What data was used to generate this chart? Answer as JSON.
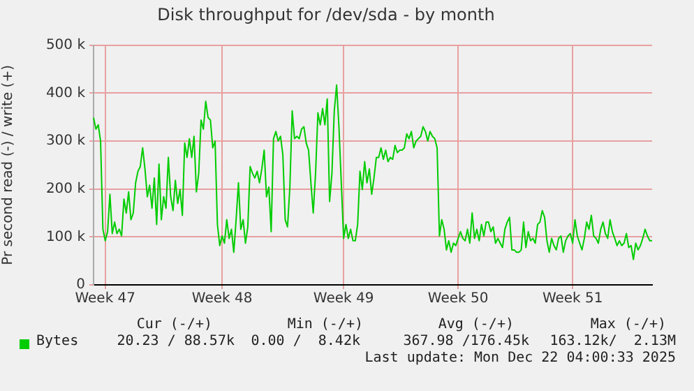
{
  "chart_data": {
    "type": "line",
    "title": "Disk throughput for /dev/sda - by month",
    "ylabel": "Pr second read (-) / write (+)",
    "categories": [
      null,
      null,
      null,
      null,
      null,
      "Week 47",
      null,
      null,
      null,
      null,
      null,
      null,
      null,
      null,
      null,
      null,
      null,
      null,
      null,
      null,
      null,
      null,
      null,
      null,
      null,
      null,
      null,
      null,
      null,
      null,
      null,
      null,
      null,
      null,
      null,
      null,
      null,
      null,
      null,
      null,
      null,
      null,
      null,
      null,
      null,
      null,
      null,
      null,
      null,
      null,
      null,
      null,
      null,
      null,
      null,
      "Week 48",
      null,
      null,
      null,
      null,
      null,
      null,
      null,
      null,
      null,
      null,
      null,
      null,
      null,
      null,
      null,
      null,
      null,
      null,
      null,
      null,
      null,
      null,
      null,
      null,
      null,
      null,
      null,
      null,
      null,
      null,
      null,
      null,
      null,
      null,
      null,
      null,
      null,
      null,
      null,
      null,
      null,
      null,
      null,
      null,
      null,
      null,
      null,
      null,
      null,
      null,
      null,
      "Week 49",
      null,
      null,
      null,
      null,
      null,
      null,
      null,
      null,
      null,
      null,
      null,
      null,
      null,
      null,
      null,
      null,
      null,
      null,
      null,
      null,
      null,
      null,
      null,
      null,
      null,
      null,
      null,
      null,
      null,
      null,
      null,
      null,
      null,
      null,
      null,
      null,
      null,
      null,
      null,
      null,
      null,
      null,
      null,
      null,
      null,
      null,
      null,
      null,
      "Week 50",
      null,
      null,
      null,
      null,
      null,
      null,
      null,
      null,
      null,
      null,
      null,
      null,
      null,
      null,
      null,
      null,
      null,
      null,
      null,
      null,
      null,
      null,
      null,
      null,
      null,
      null,
      null,
      null,
      null,
      null,
      null,
      null,
      null,
      null,
      null,
      null,
      null,
      null,
      null,
      null,
      null,
      null,
      null,
      null,
      null,
      null,
      null,
      null,
      "Week 51",
      null,
      null,
      null,
      null,
      null,
      null,
      null,
      null,
      null,
      null,
      null,
      null,
      null,
      null,
      null,
      null,
      null,
      null,
      null,
      null,
      null,
      null,
      null,
      null,
      null,
      null,
      null,
      null,
      null,
      null,
      null,
      null,
      null,
      null
    ],
    "ylim": [
      0,
      500
    ],
    "yticks": [
      0,
      {
        "value": 100,
        "label": "100 k"
      },
      {
        "value": 200,
        "label": "200 k"
      },
      {
        "value": 300,
        "label": "300 k"
      },
      {
        "value": 400,
        "label": "400 k"
      },
      {
        "value": 500,
        "label": "500 k"
      }
    ],
    "grid": true,
    "legend": "bottom left",
    "marker": "none",
    "line_style": "solid",
    "annotations": [
      "Cur (-/+)",
      "Min (-/+)",
      "Avg (-/+)",
      "Max (-/+)",
      "20.23 / 88.57k",
      "0.00 /  8.42k",
      "367.98 /176.45k",
      "163.12k/  2.13M",
      "Last update: Mon Dec 22 04:00:33 2025"
    ],
    "series": [
      {
        "name": "Bytes",
        "color": "#00cc00",
        "values": [
          349,
          325,
          334,
          300,
          116,
          92,
          111,
          189,
          107,
          131,
          107,
          116,
          102,
          179,
          150,
          194,
          136,
          150,
          213,
          237,
          247,
          286,
          242,
          184,
          208,
          160,
          223,
          126,
          252,
          136,
          184,
          160,
          266,
          184,
          155,
          218,
          170,
          199,
          145,
          296,
          266,
          305,
          266,
          310,
          194,
          233,
          344,
          325,
          383,
          349,
          344,
          286,
          300,
          126,
          82,
          102,
          87,
          136,
          97,
          116,
          68,
          136,
          213,
          116,
          136,
          87,
          121,
          247,
          233,
          223,
          237,
          213,
          242,
          281,
          184,
          204,
          111,
          305,
          320,
          300,
          310,
          271,
          136,
          121,
          204,
          363,
          305,
          310,
          305,
          325,
          330,
          296,
          281,
          213,
          150,
          233,
          359,
          334,
          368,
          334,
          388,
          174,
          233,
          363,
          417,
          330,
          213,
          97,
          126,
          97,
          116,
          92,
          92,
          126,
          237,
          199,
          257,
          213,
          242,
          189,
          223,
          266,
          266,
          286,
          262,
          281,
          257,
          266,
          262,
          291,
          276,
          281,
          281,
          286,
          315,
          305,
          320,
          286,
          300,
          305,
          310,
          330,
          320,
          300,
          320,
          310,
          305,
          286,
          102,
          136,
          116,
          73,
          92,
          68,
          87,
          82,
          97,
          111,
          97,
          92,
          116,
          87,
          150,
          97,
          116,
          92,
          126,
          102,
          131,
          131,
          111,
          121,
          87,
          97,
          87,
          78,
          116,
          131,
          141,
          73,
          73,
          68,
          68,
          73,
          131,
          78,
          111,
          92,
          97,
          87,
          126,
          131,
          155,
          141,
          92,
          68,
          97,
          82,
          73,
          97,
          102,
          68,
          92,
          102,
          107,
          87,
          136,
          102,
          87,
          73,
          97,
          131,
          116,
          145,
          102,
          97,
          87,
          116,
          131,
          107,
          97,
          136,
          111,
          97,
          82,
          92,
          82,
          87,
          107,
          78,
          82,
          53,
          87,
          73,
          82,
          97,
          116,
          102,
          92,
          92
        ]
      }
    ]
  }
}
